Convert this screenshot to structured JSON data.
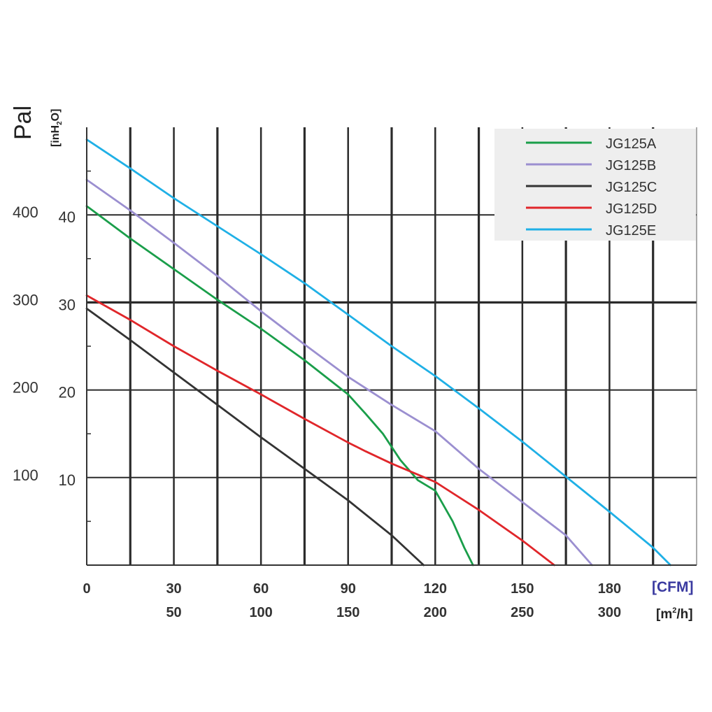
{
  "chart_data": {
    "type": "line",
    "ylabel": "Pal",
    "ylabel_secondary": "[inH2O]",
    "ylabel_secondary_parts": {
      "base": "[inH",
      "sub": "2",
      "tail": "O]"
    },
    "xunit_primary": "[CFM]",
    "xunit_secondary": "[m²/h]",
    "xunit_secondary_parts": {
      "base": "[m",
      "sup": "2",
      "tail": "/h]"
    },
    "xlim": [
      0,
      210
    ],
    "ylim": [
      0,
      50
    ],
    "xticks_cfm": [
      "0",
      "30",
      "60",
      "90",
      "120",
      "150",
      "180"
    ],
    "xticks_cfm_values": [
      0,
      30,
      60,
      90,
      120,
      150,
      180
    ],
    "xticks_m3h": [
      "50",
      "100",
      "150",
      "200",
      "250",
      "300"
    ],
    "xticks_m3h_values": [
      50,
      100,
      150,
      200,
      250,
      300
    ],
    "yticks_inh2o": [
      "10",
      "20",
      "30",
      "40"
    ],
    "yticks_pa": [
      "100",
      "200",
      "300",
      "400"
    ],
    "yticks_values": [
      10,
      20,
      30,
      40
    ],
    "grid": true,
    "legend_position": "top-right",
    "colors": {
      "JG125A": "#1a9e4a",
      "JG125B": "#9b8fd0",
      "JG125C": "#333333",
      "JG125D": "#e0262a",
      "JG125E": "#1fb0e6",
      "unit_cfm": "#3a3aa0",
      "gridline": "#2b2b2b",
      "legend_bg": "#eeeeee"
    },
    "series": [
      {
        "name": "JG125A",
        "points": [
          [
            0,
            41
          ],
          [
            15,
            37.3
          ],
          [
            30,
            33.8
          ],
          [
            45,
            30.3
          ],
          [
            60,
            27
          ],
          [
            75,
            23.4
          ],
          [
            90,
            19.5
          ],
          [
            96,
            17.3
          ],
          [
            102,
            15
          ],
          [
            108,
            12
          ],
          [
            114,
            9.7
          ],
          [
            120,
            8.5
          ],
          [
            126,
            5
          ],
          [
            130,
            2
          ],
          [
            133,
            0
          ]
        ]
      },
      {
        "name": "JG125B",
        "points": [
          [
            0,
            44
          ],
          [
            15,
            40.5
          ],
          [
            30,
            36.8
          ],
          [
            45,
            33
          ],
          [
            60,
            29
          ],
          [
            75,
            25.2
          ],
          [
            90,
            21.5
          ],
          [
            105,
            18.3
          ],
          [
            120,
            15.3
          ],
          [
            135,
            11
          ],
          [
            150,
            7.2
          ],
          [
            165,
            3.4
          ],
          [
            174,
            0
          ]
        ]
      },
      {
        "name": "JG125C",
        "points": [
          [
            0,
            29.3
          ],
          [
            15,
            25.7
          ],
          [
            30,
            22
          ],
          [
            45,
            18.3
          ],
          [
            60,
            14.6
          ],
          [
            75,
            11
          ],
          [
            90,
            7.4
          ],
          [
            105,
            3.4
          ],
          [
            116,
            0
          ]
        ]
      },
      {
        "name": "JG125D",
        "points": [
          [
            0,
            30.8
          ],
          [
            15,
            28
          ],
          [
            30,
            25
          ],
          [
            45,
            22.2
          ],
          [
            60,
            19.5
          ],
          [
            75,
            16.7
          ],
          [
            90,
            14
          ],
          [
            96,
            13
          ],
          [
            105,
            11.6
          ],
          [
            120,
            9.5
          ],
          [
            135,
            6.3
          ],
          [
            150,
            2.8
          ],
          [
            161,
            0
          ]
        ]
      },
      {
        "name": "JG125E",
        "points": [
          [
            0,
            48.6
          ],
          [
            15,
            45.3
          ],
          [
            30,
            41.9
          ],
          [
            45,
            38.7
          ],
          [
            60,
            35.5
          ],
          [
            75,
            32.2
          ],
          [
            90,
            28.6
          ],
          [
            105,
            25
          ],
          [
            120,
            21.6
          ],
          [
            135,
            17.9
          ],
          [
            150,
            14.1
          ],
          [
            165,
            10.1
          ],
          [
            180,
            6.1
          ],
          [
            195,
            2
          ],
          [
            201,
            0
          ]
        ]
      }
    ]
  }
}
